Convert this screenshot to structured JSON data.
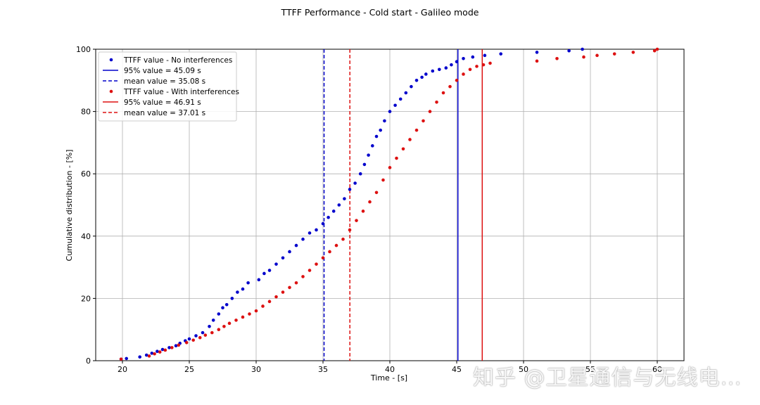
{
  "chart_data": {
    "type": "scatter",
    "title": "TTFF Performance - Cold start - Galileo mode",
    "xlabel": "Time - [s]",
    "ylabel": "Cumulative distribution - [%]",
    "xlim": [
      18,
      62
    ],
    "ylim": [
      0,
      100
    ],
    "xticks": [
      20,
      25,
      30,
      35,
      40,
      45,
      50,
      55,
      60
    ],
    "yticks": [
      0,
      20,
      40,
      60,
      80,
      100
    ],
    "grid": true,
    "legend_position": "top-left",
    "legend": [
      {
        "label": "TTFF value - No interferences",
        "kind": "marker",
        "color": "#0000cc"
      },
      {
        "label": "95% value = 45.09 s",
        "kind": "solid",
        "color": "#0000cc"
      },
      {
        "label": "mean value = 35.08 s",
        "kind": "dashed",
        "color": "#0000cc"
      },
      {
        "label": "TTFF value - With interferences",
        "kind": "marker",
        "color": "#dd1111"
      },
      {
        "label": "95% value = 46.91 s",
        "kind": "solid",
        "color": "#dd1111"
      },
      {
        "label": "mean value = 37.01 s",
        "kind": "dashed",
        "color": "#dd1111"
      }
    ],
    "vlines": [
      {
        "x": 35.08,
        "style": "dashed",
        "color": "#0000cc"
      },
      {
        "x": 45.09,
        "style": "solid",
        "color": "#0000cc"
      },
      {
        "x": 37.01,
        "style": "dashed",
        "color": "#dd1111"
      },
      {
        "x": 46.91,
        "style": "solid",
        "color": "#dd1111"
      }
    ],
    "series": [
      {
        "name": "TTFF value - No interferences",
        "color": "#0000cc",
        "x": [
          19.9,
          20.3,
          21.3,
          21.8,
          22.2,
          22.6,
          23.0,
          23.5,
          24.0,
          24.3,
          24.7,
          25.0,
          25.5,
          26.0,
          26.5,
          26.8,
          27.2,
          27.5,
          27.8,
          28.2,
          28.6,
          29.0,
          29.4,
          30.2,
          30.6,
          31.0,
          31.5,
          32.0,
          32.5,
          33.0,
          33.5,
          34.0,
          34.5,
          35.0,
          35.4,
          35.8,
          36.2,
          36.6,
          37.0,
          37.4,
          37.8,
          38.1,
          38.4,
          38.7,
          39.0,
          39.3,
          39.6,
          40.0,
          40.4,
          40.8,
          41.2,
          41.6,
          42.0,
          42.4,
          42.7,
          43.2,
          43.7,
          44.2,
          44.6,
          45.0,
          45.5,
          46.2,
          47.1,
          48.3,
          51.0,
          53.4,
          54.4
        ],
        "y": [
          0.5,
          0.7,
          1.2,
          1.8,
          2.4,
          3.0,
          3.6,
          4.2,
          4.8,
          5.6,
          6.4,
          7.0,
          8.0,
          9.0,
          11.0,
          13.0,
          15.0,
          17.0,
          18.0,
          20.0,
          22.0,
          23.0,
          25.0,
          26.0,
          28.0,
          29.0,
          31.0,
          33.0,
          35.0,
          37.0,
          39.0,
          41.0,
          42.0,
          44.0,
          46.0,
          48.0,
          50.0,
          52.0,
          55.0,
          57.0,
          60.0,
          63.0,
          66.0,
          69.0,
          72.0,
          74.0,
          77.0,
          80.0,
          82.0,
          84.0,
          86.0,
          88.0,
          90.0,
          91.0,
          92.0,
          93.0,
          93.5,
          94.0,
          95.0,
          96.0,
          97.0,
          97.5,
          98.0,
          98.5,
          99.0,
          99.5,
          100.0
        ]
      },
      {
        "name": "TTFF value - With interferences",
        "color": "#dd1111",
        "x": [
          19.9,
          22.0,
          22.4,
          22.8,
          23.2,
          23.7,
          24.2,
          24.8,
          25.3,
          25.8,
          26.2,
          26.7,
          27.2,
          27.6,
          28.0,
          28.5,
          29.0,
          29.5,
          30.0,
          30.5,
          31.0,
          31.5,
          32.0,
          32.5,
          33.0,
          33.5,
          34.0,
          34.5,
          35.0,
          35.5,
          36.0,
          36.5,
          37.0,
          37.5,
          38.0,
          38.5,
          39.0,
          39.5,
          40.0,
          40.5,
          41.0,
          41.5,
          42.0,
          42.5,
          43.0,
          43.5,
          44.0,
          44.5,
          45.0,
          45.5,
          46.0,
          46.5,
          47.0,
          47.5,
          51.0,
          52.5,
          54.5,
          55.5,
          56.8,
          58.2,
          59.8,
          60.0
        ],
        "y": [
          0.5,
          1.5,
          2.2,
          2.8,
          3.4,
          4.2,
          5.0,
          5.8,
          6.6,
          7.4,
          8.2,
          9.0,
          10.0,
          11.0,
          12.0,
          13.0,
          14.0,
          15.0,
          16.0,
          17.5,
          19.0,
          20.5,
          22.0,
          23.5,
          25.0,
          27.0,
          29.0,
          31.0,
          33.0,
          35.0,
          37.0,
          39.0,
          42.0,
          45.0,
          48.0,
          51.0,
          54.0,
          58.0,
          62.0,
          65.0,
          68.0,
          71.0,
          74.0,
          77.0,
          80.0,
          83.0,
          86.0,
          88.0,
          90.0,
          92.0,
          93.5,
          94.5,
          95.0,
          95.5,
          96.2,
          97.0,
          97.5,
          98.0,
          98.5,
          99.0,
          99.5,
          100.0
        ]
      }
    ]
  },
  "watermark": "知乎 @卫星通信与无线电…"
}
